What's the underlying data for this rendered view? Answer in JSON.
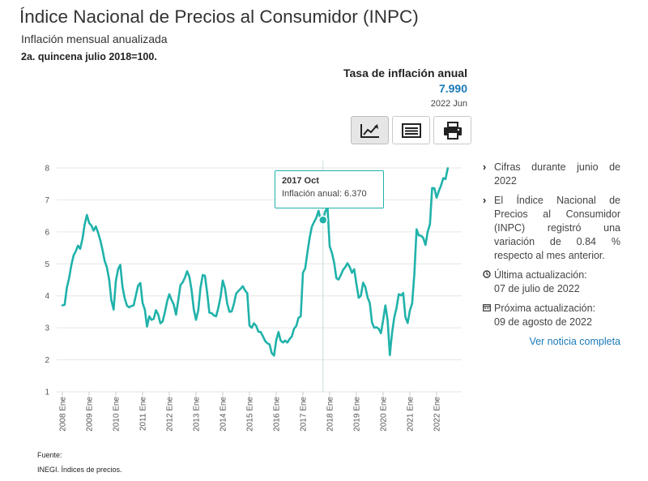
{
  "header": {
    "title": "Índice Nacional de Precios al Consumidor (INPC)",
    "subtitle": "Inflación mensual anualizada",
    "base": "2a. quincena julio 2018=100."
  },
  "indicator": {
    "label": "Tasa de inflación anual",
    "value": "7.990",
    "date": "2022 Jun"
  },
  "toolbar": {
    "chart_icon": "line-chart-icon",
    "table_icon": "table-icon",
    "print_icon": "printer-icon"
  },
  "tooltip": {
    "period": "2017 Oct",
    "label": "Inflación anual: 6.370"
  },
  "sidebar": {
    "item1": "Cifras durante junio de 2022",
    "item2": "El Índice Nacional de Precios al Consumidor (INPC) registró una variación de 0.84 % respecto al mes anterior.",
    "last_update_label": "Última actualización:",
    "last_update_date": "07 de julio de 2022",
    "next_update_label": "Próxima actualización:",
    "next_update_date": "09 de agosto de 2022",
    "link": "Ver noticia completa"
  },
  "source": {
    "label": "Fuente:",
    "text": "INEGI. Índices de precios."
  },
  "colors": {
    "line": "#20b2aa",
    "accent": "#1a7ab8",
    "grid": "#e6e6e6"
  },
  "chart_data": {
    "type": "line",
    "title": "Inflación mensual anualizada",
    "xlabel": "",
    "ylabel": "",
    "ylim": [
      1,
      8
    ],
    "yticks": [
      1,
      2,
      3,
      4,
      5,
      6,
      7,
      8
    ],
    "xticks": [
      "2008 Ene",
      "2009 Ene",
      "2010 Ene",
      "2011 Ene",
      "2012 Ene",
      "2013 Ene",
      "2014 Ene",
      "2015 Ene",
      "2016 Ene",
      "2017 Ene",
      "2018 Ene",
      "2019 Ene",
      "2020 Ene",
      "2021 Ene",
      "2022 Ene"
    ],
    "start": "2008 Ene",
    "end": "2022 Jun",
    "highlight": {
      "period": "2017 Oct",
      "value": 6.37
    },
    "series": [
      {
        "name": "Inflación anual",
        "values": [
          3.7,
          3.72,
          4.25,
          4.55,
          4.95,
          5.26,
          5.39,
          5.57,
          5.47,
          5.78,
          6.23,
          6.53,
          6.28,
          6.2,
          6.04,
          6.17,
          5.98,
          5.74,
          5.44,
          5.08,
          4.89,
          4.5,
          3.86,
          3.57,
          4.46,
          4.83,
          4.97,
          4.27,
          3.92,
          3.69,
          3.64,
          3.68,
          3.7,
          4.02,
          4.32,
          4.4,
          3.78,
          3.57,
          3.04,
          3.36,
          3.25,
          3.28,
          3.55,
          3.42,
          3.14,
          3.2,
          3.48,
          3.82,
          4.05,
          3.87,
          3.73,
          3.41,
          3.85,
          4.34,
          4.42,
          4.57,
          4.77,
          4.6,
          4.18,
          3.57,
          3.25,
          3.55,
          4.25,
          4.65,
          4.63,
          4.09,
          3.47,
          3.46,
          3.39,
          3.36,
          3.62,
          3.97,
          4.48,
          4.23,
          3.76,
          3.5,
          3.51,
          3.75,
          4.07,
          4.15,
          4.22,
          4.3,
          4.17,
          4.08,
          3.07,
          3.0,
          3.14,
          3.06,
          2.88,
          2.87,
          2.74,
          2.59,
          2.52,
          2.48,
          2.21,
          2.13,
          2.61,
          2.87,
          2.6,
          2.54,
          2.6,
          2.54,
          2.65,
          2.73,
          2.97,
          3.06,
          3.31,
          3.36,
          4.72,
          4.86,
          5.35,
          5.82,
          6.16,
          6.31,
          6.44,
          6.66,
          6.35,
          6.37,
          6.63,
          6.77,
          5.55,
          5.34,
          5.04,
          4.55,
          4.51,
          4.65,
          4.81,
          4.9,
          5.02,
          4.9,
          4.72,
          4.83,
          4.37,
          3.94,
          4.0,
          4.41,
          4.28,
          3.95,
          3.78,
          3.16,
          3.0,
          3.02,
          2.97,
          2.83,
          3.24,
          3.7,
          3.25,
          2.15,
          2.84,
          3.33,
          3.62,
          4.05,
          4.01,
          4.09,
          3.33,
          3.15,
          3.54,
          3.76,
          4.67,
          6.08,
          5.89,
          5.88,
          5.81,
          5.59,
          6.0,
          6.24,
          7.37,
          7.36,
          7.07,
          7.28,
          7.45,
          7.68,
          7.65,
          7.99
        ]
      }
    ]
  }
}
